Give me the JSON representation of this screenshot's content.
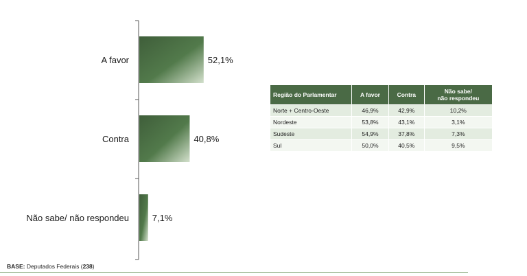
{
  "chart_data": {
    "type": "bar",
    "orientation": "horizontal",
    "categories": [
      "A favor",
      "Contra",
      "Não sabe/ não respondeu"
    ],
    "values": [
      52.1,
      40.8,
      7.1
    ],
    "value_labels": [
      "52,1%",
      "40,8%",
      "7,1%"
    ],
    "unit": "%",
    "xlim": [
      0,
      100
    ],
    "bar_color": "#4a6a45",
    "bar_highlight": "#cfdcc8",
    "grid": false
  },
  "table": {
    "headers": [
      "Região do Parlamentar",
      "A favor",
      "Contra",
      "Não sabe/",
      "não respondeu"
    ],
    "rows": [
      [
        "Norte + Centro-Oeste",
        "46,9%",
        "42,9%",
        "10,2%"
      ],
      [
        "Nordeste",
        "53,8%",
        "43,1%",
        "3,1%"
      ],
      [
        "Sudeste",
        "54,9%",
        "37,8%",
        "7,3%"
      ],
      [
        "Sul",
        "50,0%",
        "40,5%",
        "9,5%"
      ]
    ]
  },
  "footer": {
    "base_label": "BASE:",
    "base_text": "Deputados Federais (",
    "base_count": "238",
    "base_close": ")"
  },
  "colors": {
    "header_bg": "#4a6a45",
    "row_odd": "#e3ece0",
    "row_even": "#f3f7f1",
    "axis": "#555555"
  }
}
